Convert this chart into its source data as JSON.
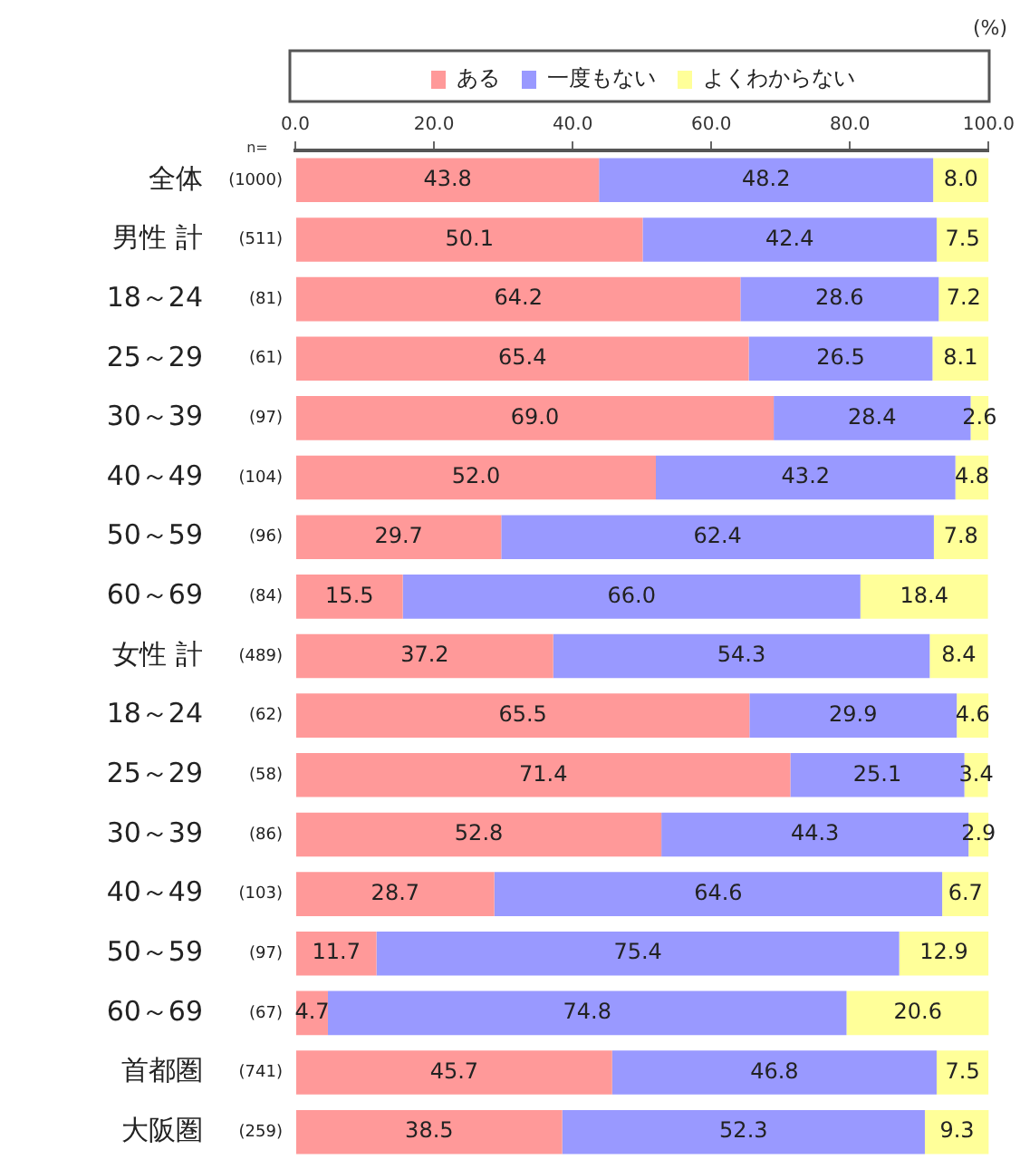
{
  "chart_data": {
    "type": "bar",
    "orientation": "horizontal",
    "stacked": true,
    "categories": [
      "全体 (1000)",
      "男性 計 (511)",
      "18～24 (81)",
      "25～29 (61)",
      "30～39 (97)",
      "40～49 (104)",
      "50～59 (96)",
      "60～69 (84)",
      "女性 計 (489)",
      "18～24 (62)",
      "25～29 (58)",
      "30～39 (86)",
      "40～49 (103)",
      "50～59 (97)",
      "60～69 (67)",
      "首都圏 (741)",
      "大阪圏 (259)"
    ],
    "series": [
      {
        "name": "ある",
        "color": "#ff9999",
        "values": [
          43.8,
          50.1,
          64.2,
          65.4,
          69,
          52,
          29.7,
          15.5,
          37.2,
          65.5,
          71.4,
          52.8,
          28.7,
          11.7,
          4.7,
          45.7,
          38.5
        ],
        "value_labels": [
          "43.8",
          "50.1",
          "64.2",
          "65.4",
          "69.0",
          "52.0",
          "29.7",
          "15.5",
          "37.2",
          "65.5",
          "71.4",
          "52.8",
          "28.7",
          "11.7",
          "4.7",
          "45.7",
          "38.5"
        ]
      },
      {
        "name": "一度もない",
        "color": "#9999ff",
        "values": [
          48.2,
          42.4,
          28.6,
          26.5,
          28.4,
          43.2,
          62.4,
          66,
          54.3,
          29.9,
          25.1,
          44.3,
          64.6,
          75.4,
          74.8,
          46.8,
          52.3
        ],
        "value_labels": [
          "48.2",
          "42.4",
          "28.6",
          "26.5",
          "28.4",
          "43.2",
          "62.4",
          "66.0",
          "54.3",
          "29.9",
          "25.1",
          "44.3",
          "64.6",
          "75.4",
          "74.8",
          "46.8",
          "52.3"
        ]
      },
      {
        "name": "よくわからない",
        "color": "#ffff99",
        "values": [
          8,
          7.5,
          7.2,
          8.1,
          2.6,
          4.8,
          7.8,
          18.4,
          8.4,
          4.6,
          3.4,
          2.9,
          6.7,
          12.9,
          20.6,
          7.5,
          9.3
        ],
        "value_labels": [
          "8.0",
          "7.5",
          "7.2",
          "8.1",
          "2.6",
          "4.8",
          "7.8",
          "18.4",
          "8.4",
          "4.6",
          "3.4",
          "2.9",
          "6.7",
          "12.9",
          "20.6",
          "7.5",
          "9.3"
        ]
      }
    ],
    "xlim": [
      0,
      100
    ],
    "xticks": [
      {
        "value": 0,
        "label": "0.0"
      },
      {
        "value": 20,
        "label": "20.0"
      },
      {
        "value": 40,
        "label": "40.0"
      },
      {
        "value": 60,
        "label": "60.0"
      },
      {
        "value": 80,
        "label": "80.0"
      },
      {
        "value": 100,
        "label": "100.0"
      }
    ],
    "legend": "top",
    "grid": false,
    "annotations": [
      "(%)",
      "n="
    ]
  }
}
